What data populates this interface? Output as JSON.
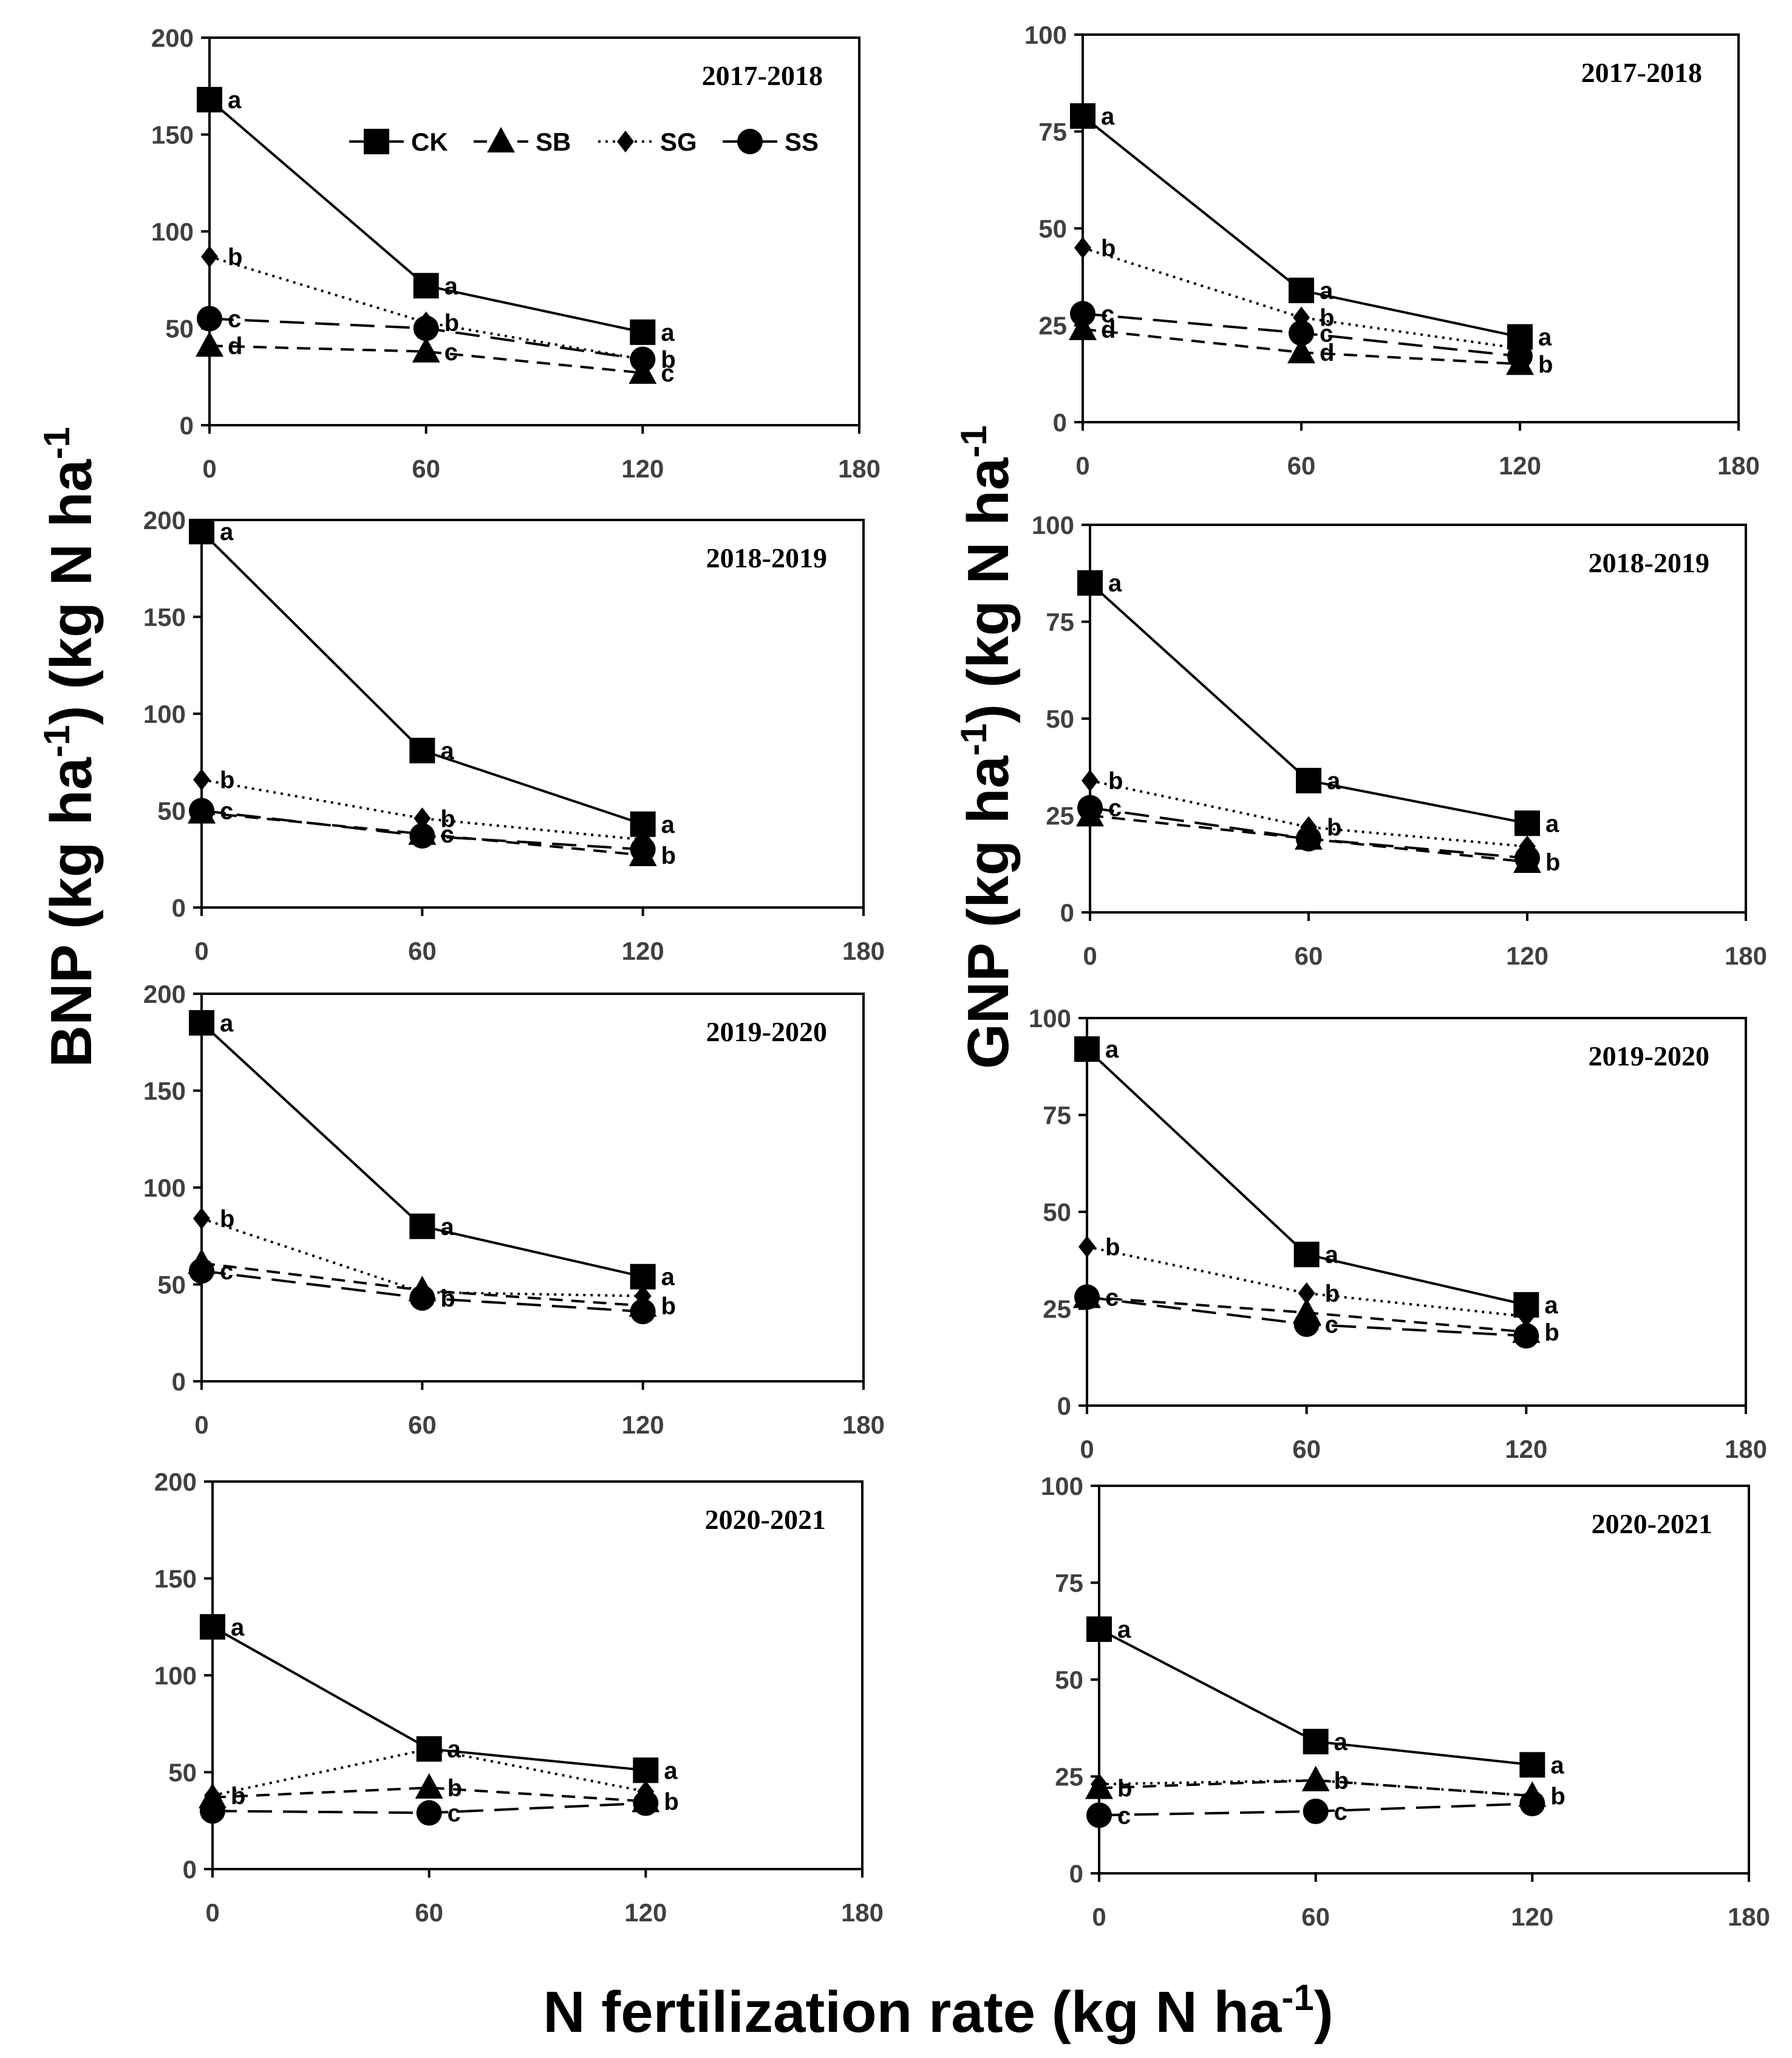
{
  "labels": {
    "y_left": "BNP (kg ha",
    "y_left_sup": "-1",
    "y_left_mid": ") (kg N ha",
    "y_left_end": "-1",
    "y_right": "GNP (kg ha",
    "y_right_sup": "-1",
    "y_right_mid": ") (kg N ha",
    "y_right_end": "-1",
    "x": "N fertilization rate (kg N ha",
    "x_sup": "-1",
    "x_end": ")"
  },
  "legend": [
    "CK",
    "SB",
    "SG",
    "SS"
  ],
  "colors": {
    "line": "#000000",
    "frame": "#000000",
    "tick": "#404040",
    "background": "#ffffff"
  },
  "chart_data": [
    {
      "type": "line",
      "panel": "BNP",
      "title": "2017-2018",
      "x": [
        0,
        60,
        120
      ],
      "xticks": [
        "0",
        "60",
        "120",
        "180"
      ],
      "xlim": [
        0,
        180
      ],
      "ylim": [
        0,
        200
      ],
      "yticks": [
        "0",
        "50",
        "100",
        "150",
        "200"
      ],
      "series": [
        {
          "name": "CK",
          "values": [
            168,
            72,
            48
          ],
          "letters": [
            "a",
            "a",
            "a"
          ]
        },
        {
          "name": "SB",
          "values": [
            41,
            38,
            27
          ],
          "letters": [
            "d",
            "c",
            "c"
          ]
        },
        {
          "name": "SG",
          "values": [
            87,
            53,
            34
          ],
          "letters": [
            "b",
            "b",
            "b"
          ]
        },
        {
          "name": "SS",
          "values": [
            55,
            50,
            34
          ],
          "letters": [
            "c",
            "",
            ""
          ]
        }
      ]
    },
    {
      "type": "line",
      "panel": "GNP",
      "title": "2017-2018",
      "x": [
        0,
        60,
        120
      ],
      "xticks": [
        "0",
        "60",
        "120",
        "180"
      ],
      "xlim": [
        0,
        180
      ],
      "ylim": [
        0,
        100
      ],
      "yticks": [
        "0",
        "25",
        "50",
        "75",
        "100"
      ],
      "series": [
        {
          "name": "CK",
          "values": [
            79,
            34,
            22
          ],
          "letters": [
            "a",
            "a",
            "a"
          ]
        },
        {
          "name": "SB",
          "values": [
            24,
            18,
            15
          ],
          "letters": [
            "d",
            "d",
            "b"
          ]
        },
        {
          "name": "SG",
          "values": [
            45,
            27,
            19
          ],
          "letters": [
            "b",
            "b",
            ""
          ]
        },
        {
          "name": "SS",
          "values": [
            28,
            23,
            17
          ],
          "letters": [
            "c",
            "c",
            ""
          ]
        }
      ]
    },
    {
      "type": "line",
      "panel": "BNP",
      "title": "2018-2019",
      "x": [
        0,
        60,
        120
      ],
      "xticks": [
        "0",
        "60",
        "120",
        "180"
      ],
      "xlim": [
        0,
        180
      ],
      "ylim": [
        0,
        200
      ],
      "yticks": [
        "0",
        "50",
        "100",
        "150",
        "200"
      ],
      "series": [
        {
          "name": "CK",
          "values": [
            194,
            81,
            43
          ],
          "letters": [
            "a",
            "a",
            "a"
          ]
        },
        {
          "name": "SB",
          "values": [
            49,
            38,
            27
          ],
          "letters": [
            "",
            "c",
            "b"
          ]
        },
        {
          "name": "SG",
          "values": [
            66,
            46,
            35
          ],
          "letters": [
            "b",
            "b",
            ""
          ]
        },
        {
          "name": "SS",
          "values": [
            50,
            37,
            30
          ],
          "letters": [
            "c",
            "",
            ""
          ]
        }
      ]
    },
    {
      "type": "line",
      "panel": "GNP",
      "title": "2018-2019",
      "x": [
        0,
        60,
        120
      ],
      "xticks": [
        "0",
        "60",
        "120",
        "180"
      ],
      "xlim": [
        0,
        180
      ],
      "ylim": [
        0,
        100
      ],
      "yticks": [
        "0",
        "25",
        "50",
        "75",
        "100"
      ],
      "series": [
        {
          "name": "CK",
          "values": [
            85,
            34,
            23
          ],
          "letters": [
            "a",
            "a",
            "a"
          ]
        },
        {
          "name": "SB",
          "values": [
            25,
            19,
            13
          ],
          "letters": [
            "",
            "",
            "b"
          ]
        },
        {
          "name": "SG",
          "values": [
            34,
            22,
            17
          ],
          "letters": [
            "b",
            "b",
            ""
          ]
        },
        {
          "name": "SS",
          "values": [
            27,
            19,
            14
          ],
          "letters": [
            "c",
            "",
            ""
          ]
        }
      ]
    },
    {
      "type": "line",
      "panel": "BNP",
      "title": "2019-2020",
      "x": [
        0,
        60,
        120
      ],
      "xticks": [
        "0",
        "60",
        "120",
        "180"
      ],
      "xlim": [
        0,
        180
      ],
      "ylim": [
        0,
        200
      ],
      "yticks": [
        "0",
        "50",
        "100",
        "150",
        "200"
      ],
      "series": [
        {
          "name": "CK",
          "values": [
            185,
            80,
            54
          ],
          "letters": [
            "a",
            "a",
            "a"
          ]
        },
        {
          "name": "SB",
          "values": [
            61,
            47,
            39
          ],
          "letters": [
            "",
            "",
            "b"
          ]
        },
        {
          "name": "SG",
          "values": [
            84,
            46,
            44
          ],
          "letters": [
            "b",
            "",
            ""
          ]
        },
        {
          "name": "SS",
          "values": [
            57,
            43,
            36
          ],
          "letters": [
            "c",
            "b",
            ""
          ]
        }
      ]
    },
    {
      "type": "line",
      "panel": "GNP",
      "title": "2019-2020",
      "x": [
        0,
        60,
        120
      ],
      "xticks": [
        "0",
        "60",
        "120",
        "180"
      ],
      "xlim": [
        0,
        180
      ],
      "ylim": [
        0,
        100
      ],
      "yticks": [
        "0",
        "25",
        "50",
        "75",
        "100"
      ],
      "series": [
        {
          "name": "CK",
          "values": [
            92,
            39,
            26
          ],
          "letters": [
            "a",
            "a",
            "a"
          ]
        },
        {
          "name": "SB",
          "values": [
            28,
            24,
            19
          ],
          "letters": [
            "",
            "",
            "b"
          ]
        },
        {
          "name": "SG",
          "values": [
            41,
            29,
            23
          ],
          "letters": [
            "b",
            "b",
            ""
          ]
        },
        {
          "name": "SS",
          "values": [
            28,
            21,
            18
          ],
          "letters": [
            "c",
            "c",
            ""
          ]
        }
      ]
    },
    {
      "type": "line",
      "panel": "BNP",
      "title": "2020-2021",
      "x": [
        0,
        60,
        120
      ],
      "xticks": [
        "0",
        "60",
        "120",
        "180"
      ],
      "xlim": [
        0,
        180
      ],
      "ylim": [
        0,
        200
      ],
      "yticks": [
        "0",
        "50",
        "100",
        "150",
        "200"
      ],
      "series": [
        {
          "name": "CK",
          "values": [
            125,
            62,
            51
          ],
          "letters": [
            "a",
            "a",
            "a"
          ]
        },
        {
          "name": "SB",
          "values": [
            37,
            42,
            35
          ],
          "letters": [
            "",
            "b",
            "b"
          ]
        },
        {
          "name": "SG",
          "values": [
            38,
            62,
            40
          ],
          "letters": [
            "b",
            "",
            ""
          ]
        },
        {
          "name": "SS",
          "values": [
            30,
            29,
            34
          ],
          "letters": [
            "",
            "c",
            ""
          ]
        }
      ]
    },
    {
      "type": "line",
      "panel": "GNP",
      "title": "2020-2021",
      "x": [
        0,
        60,
        120
      ],
      "xticks": [
        "0",
        "60",
        "120",
        "180"
      ],
      "xlim": [
        0,
        180
      ],
      "ylim": [
        0,
        100
      ],
      "yticks": [
        "0",
        "25",
        "50",
        "75",
        "100"
      ],
      "series": [
        {
          "name": "CK",
          "values": [
            63,
            34,
            28
          ],
          "letters": [
            "a",
            "a",
            "a"
          ]
        },
        {
          "name": "SB",
          "values": [
            22,
            24,
            20
          ],
          "letters": [
            "b",
            "b",
            "b"
          ]
        },
        {
          "name": "SG",
          "values": [
            23,
            24,
            20
          ],
          "letters": [
            "",
            "",
            ""
          ]
        },
        {
          "name": "SS",
          "values": [
            15,
            16,
            18
          ],
          "letters": [
            "c",
            "c",
            ""
          ]
        }
      ]
    }
  ]
}
